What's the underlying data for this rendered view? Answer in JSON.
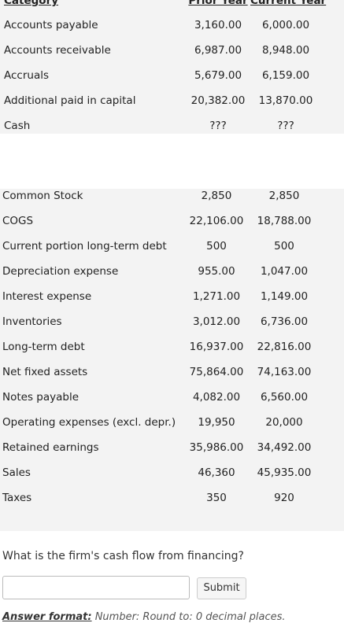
{
  "table": {
    "header": [
      "Category",
      "Prior Year",
      "Current Year"
    ],
    "rows": [
      [
        "Accounts payable",
        "3,160.00",
        "6,000.00"
      ],
      [
        "Accounts receivable",
        "6,987.00",
        "8,948.00"
      ],
      [
        "Accruals",
        "5,679.00",
        "6,159.00"
      ],
      [
        "Additional paid in capital",
        "20,382.00",
        "13,870.00"
      ],
      [
        "Cash",
        "???",
        "???"
      ]
    ]
  },
  "table2": {
    "rows": [
      [
        "Common Stock",
        "2,850",
        "2,850"
      ],
      [
        "COGS",
        "22,106.00",
        "18,788.00"
      ],
      [
        "Current portion long-term debt",
        "500",
        "500"
      ],
      [
        "Depreciation expense",
        "955.00",
        "1,047.00"
      ],
      [
        "Interest expense",
        "1,271.00",
        "1,149.00"
      ],
      [
        "Inventories",
        "3,012.00",
        "6,736.00"
      ],
      [
        "Long-term debt",
        "16,937.00",
        "22,816.00"
      ],
      [
        "Net fixed assets",
        "75,864.00",
        "74,163.00"
      ],
      [
        "Notes payable",
        "4,082.00",
        "6,560.00"
      ],
      [
        "Operating expenses (excl. depr.)",
        "19,950",
        "20,000"
      ],
      [
        "Retained earnings",
        "35,986.00",
        "34,492.00"
      ],
      [
        "Sales",
        "46,360",
        "45,935.00"
      ],
      [
        "Taxes",
        "350",
        "920"
      ]
    ]
  },
  "question": "What is the firm's cash flow from financing?",
  "button": "Submit",
  "answer_format": {
    "label": "Answer format:",
    "text": "Number: Round to: 0 decimal places."
  }
}
